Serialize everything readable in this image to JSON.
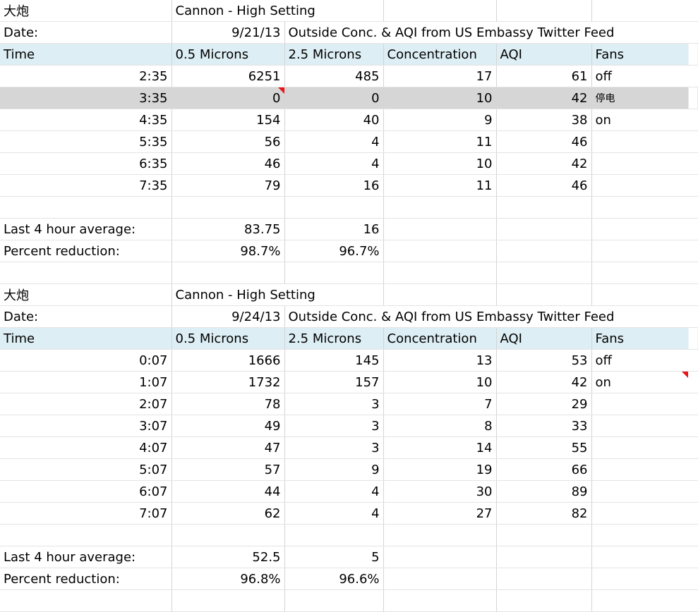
{
  "sections": [
    {
      "title_cn": "大炮",
      "title": "Cannon - High Setting",
      "date_label": "Date:",
      "date": "9/21/13",
      "source": "Outside Conc. & AQI from US Embassy Twitter Feed",
      "header": [
        "Time",
        "0.5 Microns",
        "2.5 Microns",
        "Concentration",
        "AQI",
        "Fans"
      ],
      "rows": [
        [
          "2:35",
          "6251",
          "485",
          "17",
          "61",
          "off"
        ],
        [
          "3:35",
          "0",
          "0",
          "10",
          "42",
          "停电"
        ],
        [
          "4:35",
          "154",
          "40",
          "9",
          "38",
          "on"
        ],
        [
          "5:35",
          "56",
          "4",
          "11",
          "46"
        ],
        [
          "6:35",
          "46",
          "4",
          "10",
          "42"
        ],
        [
          "7:35",
          "79",
          "16",
          "11",
          "46"
        ]
      ],
      "summary": [
        [
          "Last 4 hour average:",
          "83.75",
          "16"
        ],
        [
          "Percent reduction:",
          "98.7%",
          "96.7%"
        ]
      ]
    },
    {
      "title_cn": "大炮",
      "title": "Cannon - High Setting",
      "date_label": "Date:",
      "date": "9/24/13",
      "source": "Outside Conc. & AQI from US Embassy Twitter Feed",
      "header": [
        "Time",
        "0.5 Microns",
        "2.5 Microns",
        "Concentration",
        "AQI",
        "Fans"
      ],
      "rows": [
        [
          "0:07",
          "1666",
          "145",
          "13",
          "53",
          "off"
        ],
        [
          "1:07",
          "1732",
          "157",
          "10",
          "42",
          "on"
        ],
        [
          "2:07",
          "78",
          "3",
          "7",
          "29"
        ],
        [
          "3:07",
          "49",
          "3",
          "8",
          "33"
        ],
        [
          "4:07",
          "47",
          "3",
          "14",
          "55"
        ],
        [
          "5:07",
          "57",
          "9",
          "19",
          "66"
        ],
        [
          "6:07",
          "44",
          "4",
          "30",
          "89"
        ],
        [
          "7:07",
          "62",
          "4",
          "27",
          "82"
        ]
      ],
      "summary": [
        [
          "Last 4 hour average:",
          "52.5",
          "5"
        ],
        [
          "Percent reduction:",
          "96.8%",
          "96.6%"
        ]
      ]
    }
  ]
}
